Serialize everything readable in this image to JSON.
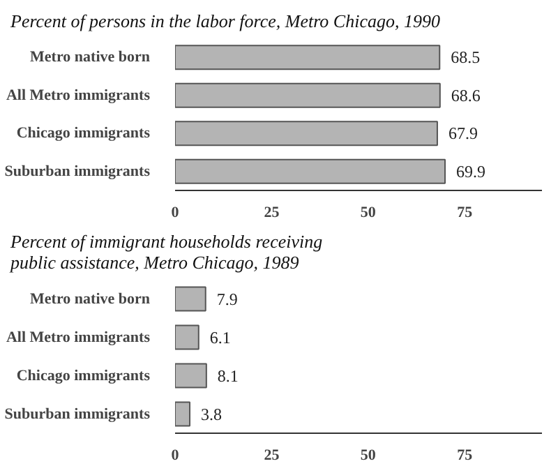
{
  "chart_data": [
    {
      "type": "bar",
      "orientation": "horizontal",
      "title": "Percent of persons in the labor force, Metro Chicago, 1990",
      "categories": [
        "Metro native born",
        "All Metro immigrants",
        "Chicago immigrants",
        "Suburban immigrants"
      ],
      "values": [
        68.5,
        68.6,
        67.9,
        69.9
      ],
      "color": "#b4b4b4",
      "xlim": [
        0,
        95
      ],
      "xticks": [
        0,
        25,
        50,
        75
      ],
      "data_labels": true,
      "grid": false,
      "legend": false
    },
    {
      "type": "bar",
      "orientation": "horizontal",
      "title": "Percent of immigrant households receiving public assistance, Metro Chicago, 1989",
      "categories": [
        "Metro native born",
        "All Metro immigrants",
        "Chicago immigrants",
        "Suburban immigrants"
      ],
      "values": [
        7.9,
        6.1,
        8.1,
        3.8
      ],
      "color": "#b4b4b4",
      "xlim": [
        0,
        95
      ],
      "xticks": [
        0,
        25,
        50,
        75
      ],
      "data_labels": true,
      "grid": false,
      "legend": false
    }
  ]
}
